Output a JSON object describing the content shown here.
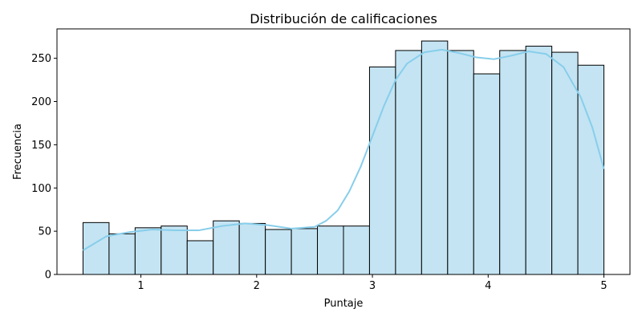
{
  "chart_data": {
    "type": "bar",
    "title": "Distribución de calificaciones",
    "xlabel": "Puntaje",
    "ylabel": "Frecuencia",
    "xlim": [
      0.275,
      5.225
    ],
    "ylim": [
      0,
      284
    ],
    "xticks": [
      1,
      2,
      3,
      4,
      5
    ],
    "yticks": [
      0,
      50,
      100,
      150,
      200,
      250
    ],
    "grid": false,
    "bins": [
      {
        "x0": 0.5,
        "x1": 0.725,
        "count": 60
      },
      {
        "x0": 0.725,
        "x1": 0.95,
        "count": 47
      },
      {
        "x0": 0.95,
        "x1": 1.175,
        "count": 54
      },
      {
        "x0": 1.175,
        "x1": 1.4,
        "count": 56
      },
      {
        "x0": 1.4,
        "x1": 1.625,
        "count": 39
      },
      {
        "x0": 1.625,
        "x1": 1.85,
        "count": 62
      },
      {
        "x0": 1.85,
        "x1": 2.075,
        "count": 59
      },
      {
        "x0": 2.075,
        "x1": 2.3,
        "count": 52
      },
      {
        "x0": 2.3,
        "x1": 2.525,
        "count": 53
      },
      {
        "x0": 2.525,
        "x1": 2.75,
        "count": 56
      },
      {
        "x0": 2.75,
        "x1": 2.975,
        "count": 56
      },
      {
        "x0": 2.975,
        "x1": 3.2,
        "count": 240
      },
      {
        "x0": 3.2,
        "x1": 3.425,
        "count": 259
      },
      {
        "x0": 3.425,
        "x1": 3.65,
        "count": 270
      },
      {
        "x0": 3.65,
        "x1": 3.875,
        "count": 259
      },
      {
        "x0": 3.875,
        "x1": 4.1,
        "count": 232
      },
      {
        "x0": 4.1,
        "x1": 4.325,
        "count": 259
      },
      {
        "x0": 4.325,
        "x1": 4.55,
        "count": 264
      },
      {
        "x0": 4.55,
        "x1": 4.775,
        "count": 257
      },
      {
        "x0": 4.775,
        "x1": 5.0,
        "count": 242
      }
    ],
    "kde": {
      "x": [
        0.5,
        0.7,
        0.9,
        1.1,
        1.3,
        1.5,
        1.7,
        1.9,
        2.1,
        2.3,
        2.5,
        2.6,
        2.7,
        2.8,
        2.9,
        3.0,
        3.1,
        3.2,
        3.3,
        3.45,
        3.6,
        3.75,
        3.9,
        4.05,
        4.2,
        4.35,
        4.5,
        4.65,
        4.8,
        4.9,
        5.0
      ],
      "y": [
        28,
        44,
        49,
        52,
        51,
        51,
        56,
        59,
        57,
        53,
        55,
        62,
        74,
        96,
        125,
        160,
        195,
        225,
        244,
        257,
        260,
        256,
        251,
        249,
        253,
        258,
        255,
        240,
        205,
        170,
        122
      ]
    },
    "colors": {
      "bar_fill": "#c4e4f3",
      "bar_edge": "#000000",
      "kde_line": "#87ceeb"
    }
  }
}
